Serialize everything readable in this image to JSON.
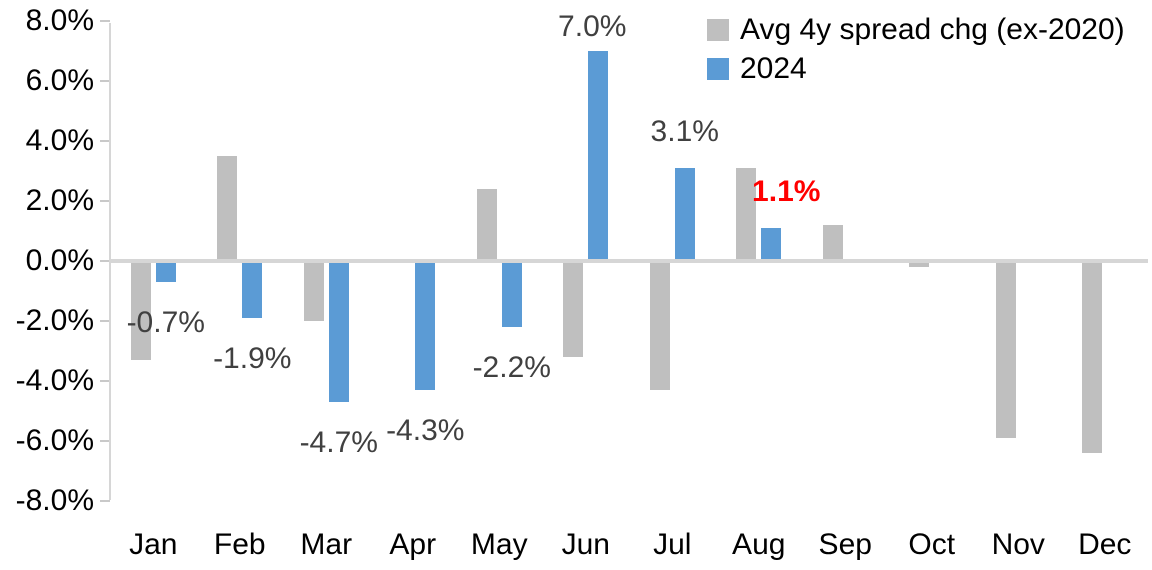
{
  "chart_data": {
    "type": "bar",
    "title": "",
    "categories": [
      "Jan",
      "Feb",
      "Mar",
      "Apr",
      "May",
      "Jun",
      "Jul",
      "Aug",
      "Sep",
      "Oct",
      "Nov",
      "Dec"
    ],
    "series": [
      {
        "name": "Avg 4y spread chg (ex-2020)",
        "color": "#BFBFBF",
        "values": [
          -3.3,
          3.5,
          -2.0,
          0.0,
          2.4,
          -3.2,
          -4.3,
          3.1,
          1.2,
          -0.2,
          -5.9,
          -6.4
        ]
      },
      {
        "name": "2024",
        "color": "#5B9BD5",
        "values": [
          -0.7,
          -1.9,
          -4.7,
          -4.3,
          -2.2,
          7.0,
          3.1,
          1.1,
          null,
          null,
          null,
          null
        ]
      }
    ],
    "y_axis": {
      "ticks": [
        "8.0%",
        "6.0%",
        "4.0%",
        "2.0%",
        "0.0%",
        "-2.0%",
        "-4.0%",
        "-6.0%",
        "-8.0%"
      ],
      "tick_values": [
        8,
        6,
        4,
        2,
        0,
        -2,
        -4,
        -6,
        -8
      ],
      "ylim": [
        -8,
        8
      ],
      "unit": "%"
    },
    "data_labels": [
      {
        "category": "Jan",
        "series": "2024",
        "text": "-0.7%",
        "color": "#404040",
        "bold": false
      },
      {
        "category": "Feb",
        "series": "2024",
        "text": "-1.9%",
        "color": "#404040",
        "bold": false
      },
      {
        "category": "Mar",
        "series": "2024",
        "text": "-4.7%",
        "color": "#404040",
        "bold": false
      },
      {
        "category": "Apr",
        "series": "2024",
        "text": "-4.3%",
        "color": "#404040",
        "bold": false
      },
      {
        "category": "May",
        "series": "2024",
        "text": "-2.2%",
        "color": "#404040",
        "bold": false
      },
      {
        "category": "Jun",
        "series": "2024",
        "text": "7.0%",
        "color": "#404040",
        "bold": false
      },
      {
        "category": "Jul",
        "series": "2024",
        "text": "3.1%",
        "color": "#404040",
        "bold": false
      },
      {
        "category": "Aug",
        "series": "2024",
        "text": "1.1%",
        "color": "#FF0000",
        "bold": true
      }
    ],
    "legend": {
      "position": "top-right",
      "entries": [
        "Avg 4y spread chg (ex-2020)",
        "2024"
      ]
    },
    "gridlines": false
  },
  "colors": {
    "background": "#FFFFFF",
    "axis_line": "#D6D6D6",
    "tick_mark": "#C9C9C9",
    "series_gray": "#BFBFBF",
    "series_blue": "#5B9BD5",
    "label_default": "#404040",
    "label_highlight": "#FF0000",
    "axis_text": "#000000"
  }
}
